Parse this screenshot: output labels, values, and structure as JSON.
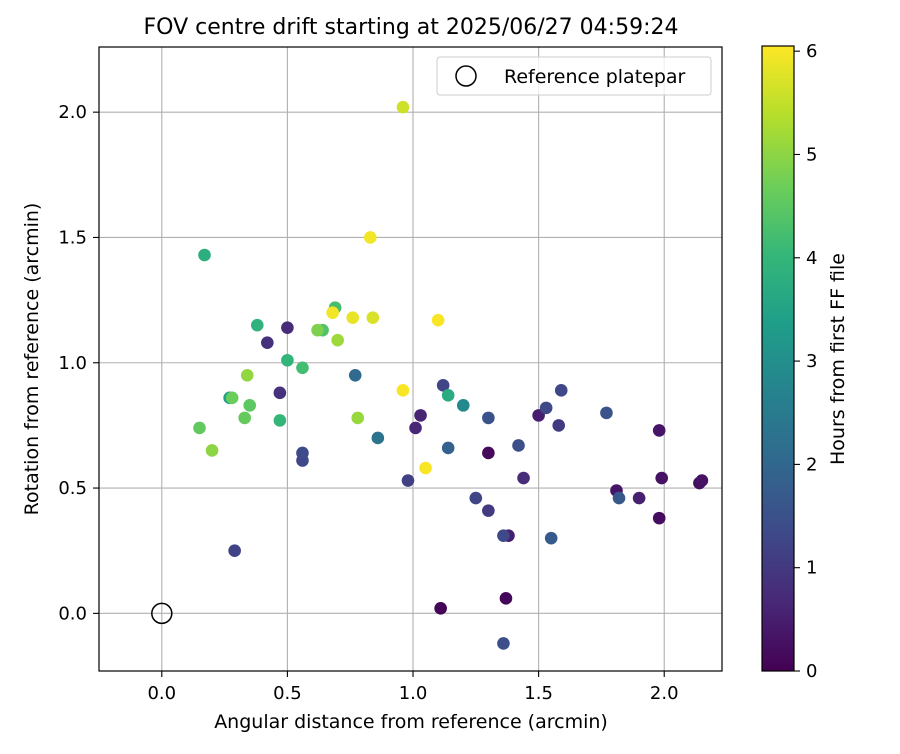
{
  "chart_data": {
    "type": "scatter",
    "title": "FOV centre drift starting at 2025/06/27 04:59:24",
    "xlabel": "Angular distance from reference (arcmin)",
    "ylabel": "Rotation from reference (arcmin)",
    "xlim": [
      -0.25,
      2.23
    ],
    "ylim": [
      -0.23,
      2.26
    ],
    "x_ticks": [
      0.0,
      0.5,
      1.0,
      1.5,
      2.0
    ],
    "x_tick_labels": [
      "0.0",
      "0.5",
      "1.0",
      "1.5",
      "2.0"
    ],
    "y_ticks": [
      0.0,
      0.5,
      1.0,
      1.5,
      2.0
    ],
    "y_tick_labels": [
      "0.0",
      "0.5",
      "1.0",
      "1.5",
      "2.0"
    ],
    "grid": true,
    "legend": {
      "placement": "top-right",
      "entries": [
        {
          "label": "Reference platepar",
          "marker": "open-circle"
        }
      ]
    },
    "reference_point": {
      "name": "Reference platepar",
      "x": 0.0,
      "y": 0.0
    },
    "colorbar": {
      "label": "Hours from first FF file",
      "range": [
        0,
        6.05
      ],
      "ticks": [
        0,
        1,
        2,
        3,
        4,
        5,
        6
      ],
      "tick_labels": [
        "0",
        "1",
        "2",
        "3",
        "4",
        "5",
        "6"
      ],
      "colormap": "viridis",
      "stops": [
        "#440154",
        "#482878",
        "#3e4a89",
        "#31688e",
        "#26828e",
        "#1f9e89",
        "#35b779",
        "#6ece58",
        "#b5de2b",
        "#fde725"
      ]
    },
    "points": [
      {
        "x": 1.11,
        "y": 0.02,
        "h": 0.05
      },
      {
        "x": 1.37,
        "y": 0.06,
        "h": 0.1
      },
      {
        "x": 1.3,
        "y": 0.64,
        "h": 0.15
      },
      {
        "x": 1.98,
        "y": 0.38,
        "h": 0.2
      },
      {
        "x": 2.14,
        "y": 0.52,
        "h": 0.25
      },
      {
        "x": 2.15,
        "y": 0.53,
        "h": 0.3
      },
      {
        "x": 1.99,
        "y": 0.54,
        "h": 0.3
      },
      {
        "x": 1.98,
        "y": 0.73,
        "h": 0.35
      },
      {
        "x": 1.81,
        "y": 0.49,
        "h": 0.35
      },
      {
        "x": 1.38,
        "y": 0.31,
        "h": 0.5
      },
      {
        "x": 1.5,
        "y": 0.79,
        "h": 0.5
      },
      {
        "x": 1.9,
        "y": 0.46,
        "h": 0.55
      },
      {
        "x": 1.01,
        "y": 0.74,
        "h": 0.65
      },
      {
        "x": 1.03,
        "y": 0.79,
        "h": 0.6
      },
      {
        "x": 1.44,
        "y": 0.54,
        "h": 0.75
      },
      {
        "x": 0.5,
        "y": 1.14,
        "h": 0.75
      },
      {
        "x": 0.42,
        "y": 1.08,
        "h": 0.85
      },
      {
        "x": 0.47,
        "y": 0.88,
        "h": 0.85
      },
      {
        "x": 1.3,
        "y": 0.41,
        "h": 1.05
      },
      {
        "x": 1.58,
        "y": 0.75,
        "h": 1.05
      },
      {
        "x": 0.98,
        "y": 0.53,
        "h": 1.15
      },
      {
        "x": 0.29,
        "y": 0.25,
        "h": 1.2
      },
      {
        "x": 1.25,
        "y": 0.46,
        "h": 1.25
      },
      {
        "x": 1.12,
        "y": 0.91,
        "h": 1.25
      },
      {
        "x": 1.36,
        "y": 0.31,
        "h": 1.3
      },
      {
        "x": 1.53,
        "y": 0.82,
        "h": 1.3
      },
      {
        "x": 1.59,
        "y": 0.89,
        "h": 1.3
      },
      {
        "x": 0.56,
        "y": 0.61,
        "h": 1.3
      },
      {
        "x": 0.56,
        "y": 0.64,
        "h": 1.35
      },
      {
        "x": 1.36,
        "y": -0.12,
        "h": 1.45
      },
      {
        "x": 1.42,
        "y": 0.67,
        "h": 1.45
      },
      {
        "x": 1.3,
        "y": 0.78,
        "h": 1.5
      },
      {
        "x": 1.77,
        "y": 0.8,
        "h": 1.55
      },
      {
        "x": 1.82,
        "y": 0.46,
        "h": 1.65
      },
      {
        "x": 1.55,
        "y": 0.3,
        "h": 1.7
      },
      {
        "x": 1.14,
        "y": 0.66,
        "h": 1.85
      },
      {
        "x": 0.77,
        "y": 0.95,
        "h": 2.1
      },
      {
        "x": 0.86,
        "y": 0.7,
        "h": 2.3
      },
      {
        "x": 1.2,
        "y": 0.83,
        "h": 2.85
      },
      {
        "x": 0.27,
        "y": 0.86,
        "h": 3.35
      },
      {
        "x": 1.14,
        "y": 0.87,
        "h": 3.7
      },
      {
        "x": 0.17,
        "y": 1.43,
        "h": 3.8
      },
      {
        "x": 0.38,
        "y": 1.15,
        "h": 3.9
      },
      {
        "x": 0.5,
        "y": 1.01,
        "h": 3.95
      },
      {
        "x": 0.47,
        "y": 0.77,
        "h": 4.0
      },
      {
        "x": 0.56,
        "y": 0.98,
        "h": 4.2
      },
      {
        "x": 0.69,
        "y": 1.22,
        "h": 4.25
      },
      {
        "x": 0.64,
        "y": 1.13,
        "h": 4.35
      },
      {
        "x": 0.35,
        "y": 0.83,
        "h": 4.5
      },
      {
        "x": 0.15,
        "y": 0.74,
        "h": 4.55
      },
      {
        "x": 0.33,
        "y": 0.78,
        "h": 4.6
      },
      {
        "x": 0.28,
        "y": 0.86,
        "h": 4.65
      },
      {
        "x": 0.62,
        "y": 1.13,
        "h": 4.85
      },
      {
        "x": 0.2,
        "y": 0.65,
        "h": 5.0
      },
      {
        "x": 0.34,
        "y": 0.95,
        "h": 5.05
      },
      {
        "x": 0.78,
        "y": 0.78,
        "h": 5.1
      },
      {
        "x": 0.7,
        "y": 1.09,
        "h": 5.15
      },
      {
        "x": 0.96,
        "y": 2.02,
        "h": 5.6
      },
      {
        "x": 0.84,
        "y": 1.18,
        "h": 5.7
      },
      {
        "x": 0.76,
        "y": 1.18,
        "h": 5.85
      },
      {
        "x": 0.68,
        "y": 1.2,
        "h": 5.95
      },
      {
        "x": 0.83,
        "y": 1.5,
        "h": 5.95
      },
      {
        "x": 1.1,
        "y": 1.17,
        "h": 6.0
      },
      {
        "x": 0.96,
        "y": 0.89,
        "h": 6.0
      },
      {
        "x": 1.05,
        "y": 0.58,
        "h": 6.0
      }
    ]
  }
}
